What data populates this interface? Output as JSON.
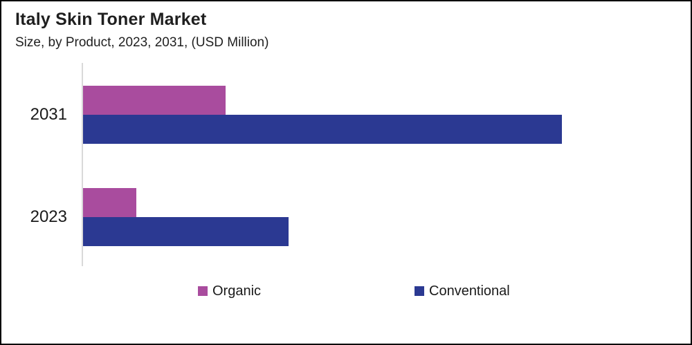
{
  "chart_data": {
    "type": "bar",
    "orientation": "horizontal",
    "title": "Italy Skin Toner Market",
    "subtitle": "Size, by Product, 2023, 2031, (USD Million)",
    "unit": "USD Million",
    "categories": [
      "2031",
      "2023"
    ],
    "series": [
      {
        "name": "Organic",
        "color": "#A94C9E",
        "values": [
          23.9,
          8.9
        ]
      },
      {
        "name": "Conventional",
        "color": "#2B3992",
        "values": [
          80.3,
          34.4
        ]
      }
    ],
    "xlim": [
      0,
      100
    ],
    "values_note": "no numeric axis shown; values estimated as percent of plot width",
    "grid": false,
    "legend_position": "bottom",
    "colors": {
      "axis_line": "#D9D9D9",
      "text": "#1F1F1F",
      "frame_border": "#000000",
      "background": "#FFFFFF"
    }
  }
}
